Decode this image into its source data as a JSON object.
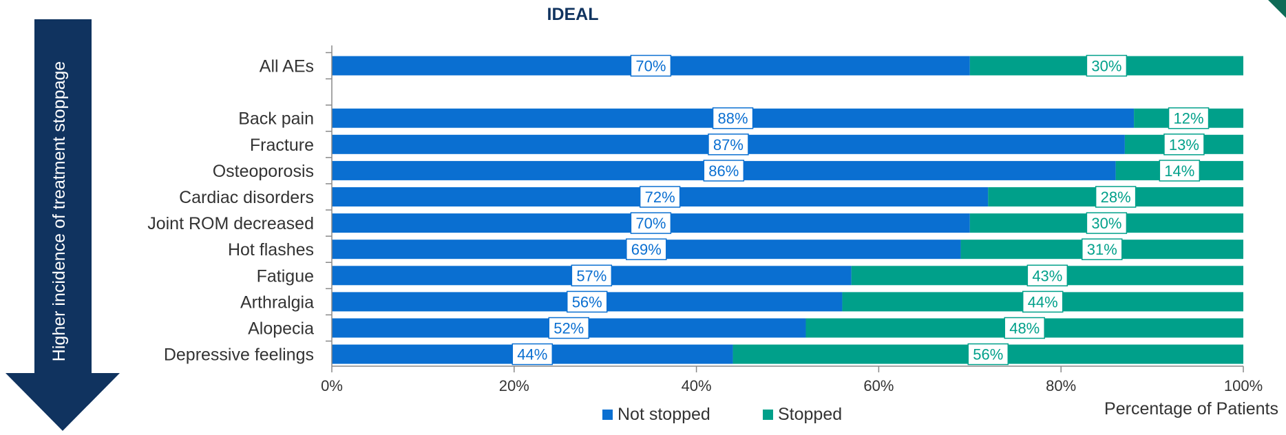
{
  "chart_data": {
    "type": "bar",
    "orientation": "horizontal",
    "stacked": true,
    "title": "IDEAL",
    "xlabel": "Percentage of Patients",
    "ylabel": "Higher incidence of treatment stoppage",
    "xlim": [
      0,
      100
    ],
    "x_ticks": [
      "0%",
      "20%",
      "40%",
      "60%",
      "80%",
      "100%"
    ],
    "categories": [
      "All AEs",
      "",
      "Back pain",
      "Fracture",
      "Osteoporosis",
      "Cardiac disorders",
      "Joint ROM decreased",
      "Hot flashes",
      "Fatigue",
      "Arthralgia",
      "Alopecia",
      "Depressive feelings"
    ],
    "series": [
      {
        "name": "Not stopped",
        "color": "#0a6fd1",
        "label_color": "#0a6fd1",
        "values": [
          70,
          null,
          88,
          87,
          86,
          72,
          70,
          69,
          57,
          56,
          52,
          44
        ],
        "labels": [
          "70%",
          "",
          "88%",
          "87%",
          "86%",
          "72%",
          "70%",
          "69%",
          "57%",
          "56%",
          "52%",
          "44%"
        ]
      },
      {
        "name": "Stopped",
        "color": "#00a08a",
        "label_color": "#00a08a",
        "values": [
          30,
          null,
          12,
          13,
          14,
          28,
          30,
          31,
          43,
          44,
          48,
          56
        ],
        "labels": [
          "30%",
          "",
          "12%",
          "13%",
          "14%",
          "28%",
          "30%",
          "31%",
          "43%",
          "44%",
          "48%",
          "56%"
        ]
      }
    ],
    "legend_position": "bottom",
    "grid": false,
    "arrow_color": "#10335f"
  }
}
